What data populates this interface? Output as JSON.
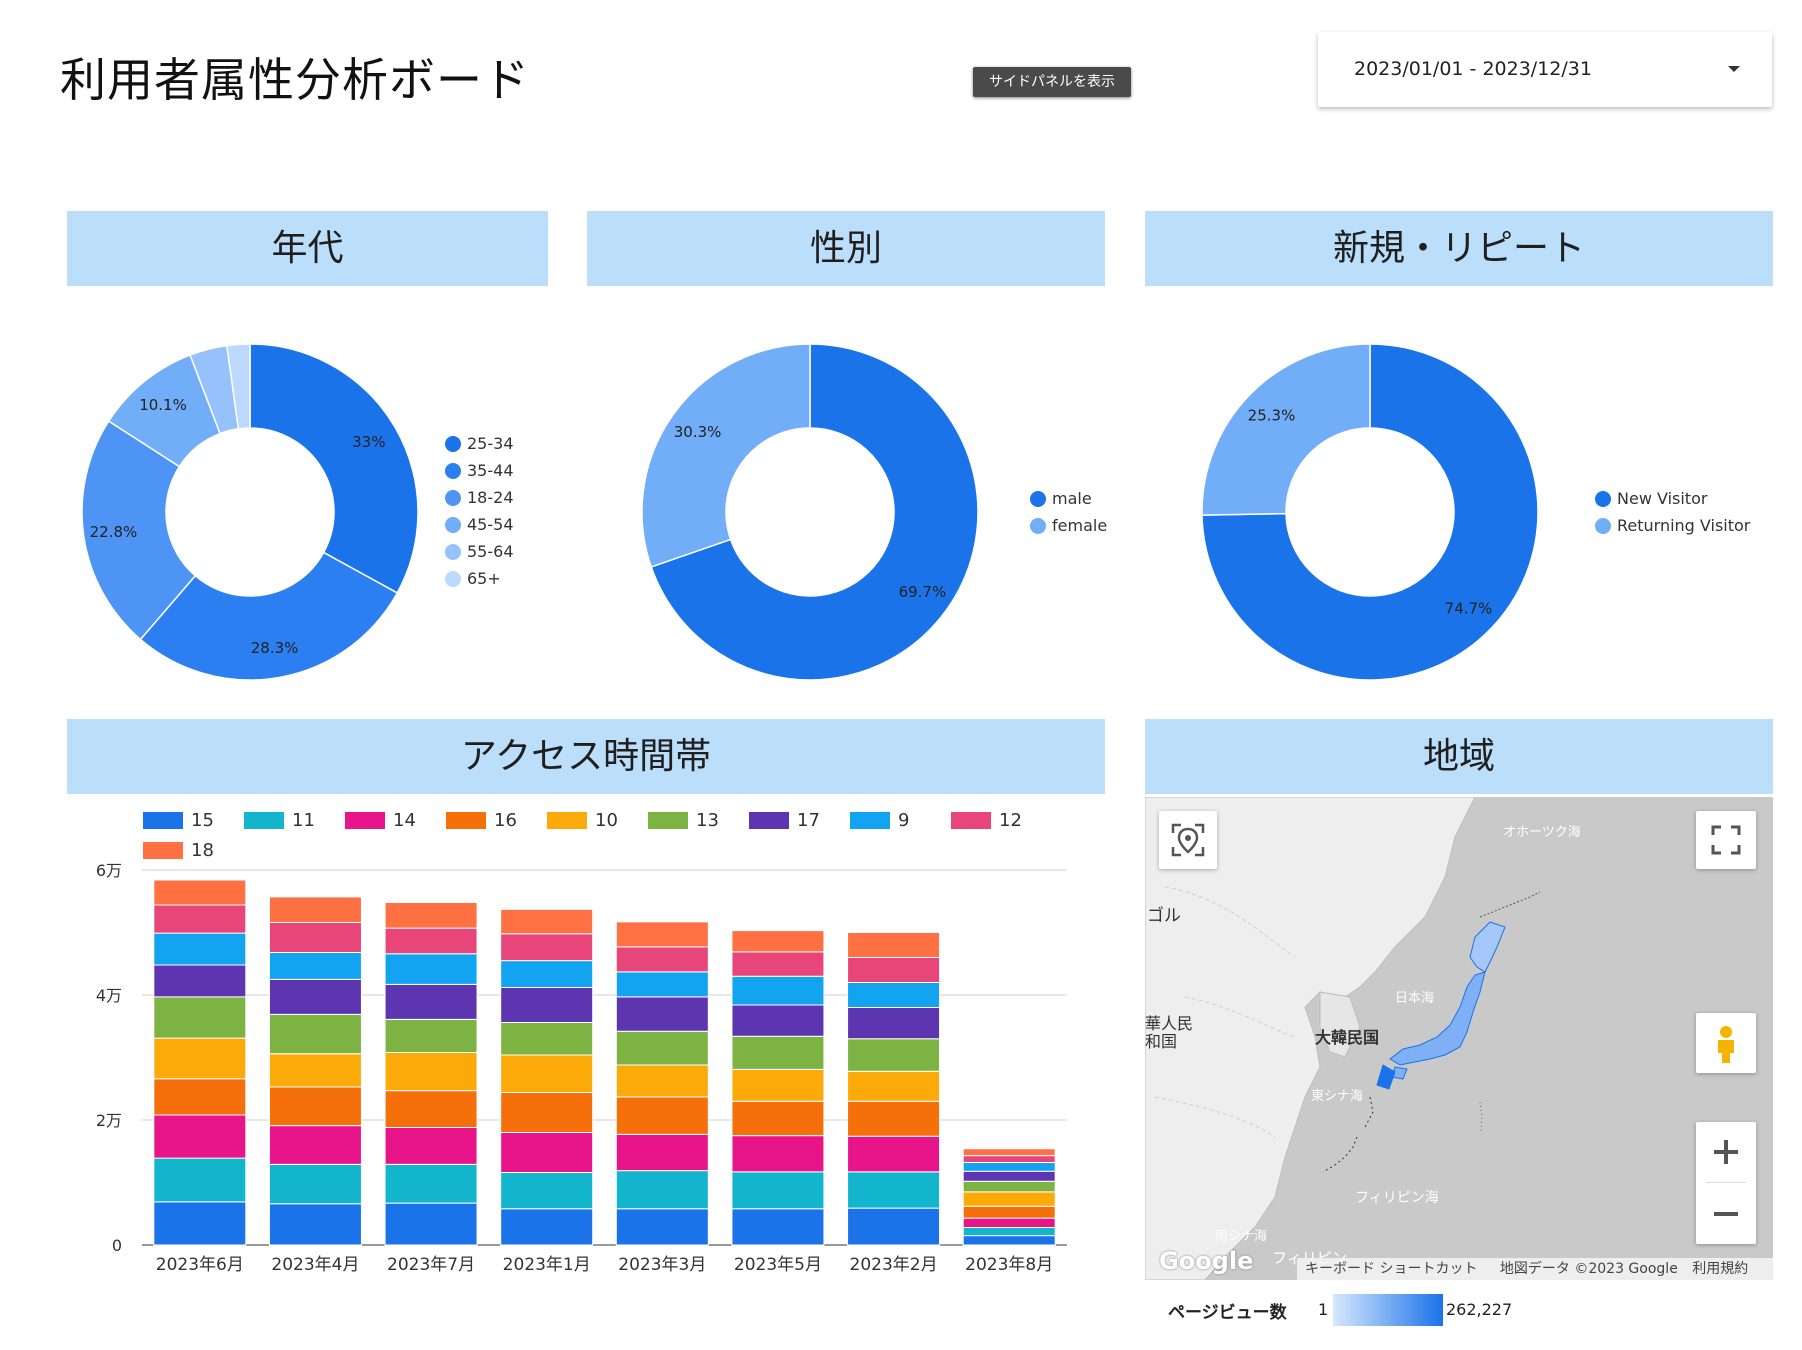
{
  "header": {
    "title": "利用者属性分析ボード",
    "side_panel_button": "サイドパネルを表示",
    "date_range": "2023/01/01 - 2023/12/31"
  },
  "colors": {
    "header_bg": "#bbdefb",
    "primary_blue": "#1a73e8",
    "light_blue": "#72adf7"
  },
  "sections": {
    "age": "年代",
    "gender": "性別",
    "visitor": "新規・リピート",
    "access_time": "アクセス時間帯",
    "region": "地域"
  },
  "chart_data": [
    {
      "type": "pie",
      "title": "年代",
      "labels": [
        "25-34",
        "35-44",
        "18-24",
        "45-54",
        "55-64",
        "65+"
      ],
      "values": [
        33,
        28.3,
        22.8,
        10.1,
        3.6,
        2.2
      ],
      "data_labels": [
        "33%",
        "28.3%",
        "22.8%",
        "10.1%",
        "",
        ""
      ],
      "colors": [
        "#1a73e8",
        "#2b7ff0",
        "#4d94f5",
        "#72adf7",
        "#95c2fa",
        "#bcd9fd"
      ],
      "legend": "right"
    },
    {
      "type": "pie",
      "title": "性別",
      "labels": [
        "male",
        "female"
      ],
      "values": [
        69.7,
        30.3
      ],
      "data_labels": [
        "69.7%",
        "30.3%"
      ],
      "colors": [
        "#1a73e8",
        "#72adf7"
      ],
      "legend": "right"
    },
    {
      "type": "pie",
      "title": "新規・リピート",
      "labels": [
        "New Visitor",
        "Returning Visitor"
      ],
      "values": [
        74.7,
        25.3
      ],
      "data_labels": [
        "74.7%",
        "25.3%"
      ],
      "colors": [
        "#1a73e8",
        "#72adf7"
      ],
      "legend": "right"
    },
    {
      "type": "bar",
      "stacked": true,
      "title": "アクセス時間帯",
      "categories": [
        "2023年6月",
        "2023年4月",
        "2023年7月",
        "2023年1月",
        "2023年3月",
        "2023年5月",
        "2023年2月",
        "2023年8月"
      ],
      "ylim": [
        0,
        60000
      ],
      "yticks": [
        "0",
        "2万",
        "4万",
        "6万"
      ],
      "grid": true,
      "legend": "top",
      "series": [
        {
          "name": "15",
          "color": "#1a73e8",
          "values": [
            6900,
            6600,
            6700,
            5800,
            5800,
            5800,
            5900,
            1500
          ]
        },
        {
          "name": "11",
          "color": "#12b5cb",
          "values": [
            7000,
            6300,
            6200,
            5800,
            6100,
            5900,
            5800,
            1300
          ]
        },
        {
          "name": "14",
          "color": "#e8148a",
          "values": [
            6900,
            6200,
            5900,
            6400,
            5800,
            5800,
            5700,
            1500
          ]
        },
        {
          "name": "16",
          "color": "#f56f0a",
          "values": [
            5800,
            6200,
            5900,
            6400,
            6000,
            5500,
            5600,
            1900
          ]
        },
        {
          "name": "10",
          "color": "#fbaa0a",
          "values": [
            6500,
            5300,
            6100,
            6000,
            5100,
            5100,
            4800,
            2300
          ]
        },
        {
          "name": "13",
          "color": "#7cb342",
          "values": [
            6600,
            6300,
            5300,
            5200,
            5400,
            5300,
            5200,
            1700
          ]
        },
        {
          "name": "17",
          "color": "#5e35b1",
          "values": [
            5100,
            5600,
            5600,
            5600,
            5500,
            5000,
            5000,
            1600
          ]
        },
        {
          "name": "9",
          "color": "#12a4f0",
          "values": [
            5100,
            4300,
            4900,
            4300,
            4000,
            4600,
            4000,
            1400
          ]
        },
        {
          "name": "12",
          "color": "#e8457a",
          "values": [
            4500,
            4800,
            4100,
            4300,
            4000,
            3900,
            4000,
            1100
          ]
        },
        {
          "name": "18",
          "color": "#ff7043",
          "values": [
            4000,
            4100,
            4100,
            3900,
            4000,
            3400,
            4000,
            1100
          ]
        }
      ]
    }
  ],
  "map": {
    "labels": {
      "okhotsk": "オホーツク海",
      "mongolia": "ゴル",
      "china": "華人民\n和国",
      "korea": "大韓民国",
      "japan_sea": "日本海",
      "east_china_sea": "東シナ海",
      "philippine_sea": "フィリピン海",
      "south_china_sea": "南シナ海",
      "philippines": "フィリピン"
    },
    "google_logo": "Google",
    "keyboard_shortcuts": "キーボード ショートカット",
    "map_data": "地図データ ©2023 Google",
    "terms": "利用規約",
    "legend_title": "ページビュー数",
    "legend_min": "1",
    "legend_max": "262,227"
  }
}
